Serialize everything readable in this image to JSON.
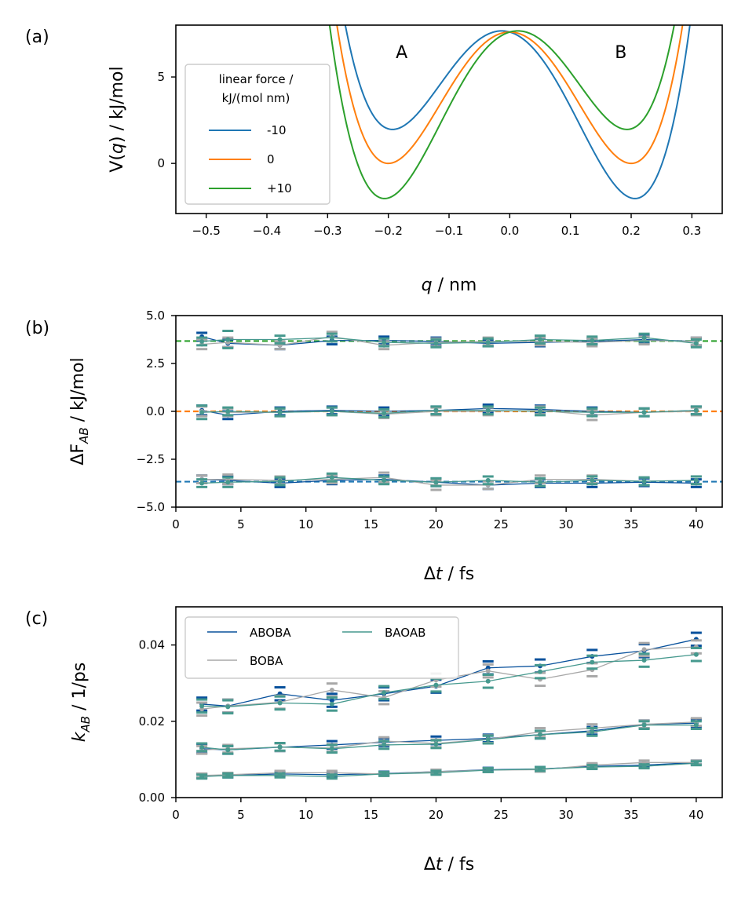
{
  "chart_data": [
    {
      "type": "line",
      "panel_label": "(a)",
      "xlabel_var": "q",
      "xlabel_unit": " / nm",
      "ylabel_pre": "V(",
      "ylabel_var": "q",
      "ylabel_post": ") / kJ/mol",
      "xlim": [
        -0.55,
        0.35
      ],
      "ylim": [
        -2.9,
        8.0
      ],
      "xticks": [
        -0.5,
        -0.4,
        -0.3,
        -0.2,
        -0.1,
        0.0,
        0.1,
        0.2,
        0.3
      ],
      "xtick_labels": [
        "−0.5",
        "−0.4",
        "−0.3",
        "−0.2",
        "−0.1",
        "0.0",
        "0.1",
        "0.2",
        "0.3"
      ],
      "yticks": [
        0,
        5
      ],
      "ytick_labels": [
        "0",
        "5"
      ],
      "annotations": [
        {
          "text": "A",
          "x": -0.178,
          "y": 6.45
        },
        {
          "text": "B",
          "x": 0.183,
          "y": 6.45
        }
      ],
      "legend_title_line1": "linear force /",
      "legend_title_line2": "kJ/(mol nm)",
      "potential": {
        "barrier": 7.6,
        "q0": 0.2
      },
      "series": [
        {
          "name": "-10",
          "force": -10,
          "color": "#1f77b4"
        },
        {
          "name": "0",
          "force": 0,
          "color": "#ff7f0e"
        },
        {
          "name": "+10",
          "force": 10,
          "color": "#2ca02c"
        }
      ]
    },
    {
      "type": "line",
      "panel_label": "(b)",
      "xlabel_pre": "Δ",
      "xlabel_var": "t",
      "xlabel_unit": " / fs",
      "ylabel_pre": "ΔF",
      "ylabel_sub": "AB",
      "ylabel_post": " / kJ/mol",
      "xlim": [
        0,
        42
      ],
      "ylim": [
        -5.0,
        5.0
      ],
      "xticks": [
        0,
        5,
        10,
        15,
        20,
        25,
        30,
        35,
        40
      ],
      "xtick_labels": [
        "0",
        "5",
        "10",
        "15",
        "20",
        "25",
        "30",
        "35",
        "40"
      ],
      "yticks": [
        -5.0,
        -2.5,
        0.0,
        2.5,
        5.0
      ],
      "ytick_labels": [
        "−5.0",
        "−2.5",
        "0.0",
        "2.5",
        "5.0"
      ],
      "x": [
        2,
        4,
        8,
        12,
        16,
        20,
        24,
        28,
        32,
        36,
        40
      ],
      "reference_lines": [
        {
          "y": 3.67,
          "color": "#2ca02c"
        },
        {
          "y": 0.0,
          "color": "#ff7f0e"
        },
        {
          "y": -3.67,
          "color": "#1f77b4"
        }
      ],
      "series": [
        {
          "name": "ABOBA",
          "color": "#08519c",
          "groups": [
            {
              "values": [
                3.9,
                3.55,
                3.45,
                3.7,
                3.7,
                3.65,
                3.55,
                3.6,
                3.65,
                3.75,
                3.65
              ],
              "err": [
                0.2,
                0.2,
                0.2,
                0.2,
                0.2,
                0.2,
                0.15,
                0.2,
                0.15,
                0.2,
                0.2
              ]
            },
            {
              "values": [
                0.05,
                -0.2,
                0.0,
                0.05,
                0.0,
                0.05,
                0.15,
                0.1,
                0.0,
                -0.05,
                0.05
              ],
              "err": [
                0.25,
                0.2,
                0.2,
                0.2,
                0.2,
                0.2,
                0.2,
                0.2,
                0.2,
                0.2,
                0.2
              ]
            },
            {
              "values": [
                -3.55,
                -3.6,
                -3.75,
                -3.6,
                -3.55,
                -3.7,
                -3.85,
                -3.75,
                -3.75,
                -3.7,
                -3.75
              ],
              "err": [
                0.2,
                0.2,
                0.2,
                0.2,
                0.2,
                0.2,
                0.2,
                0.2,
                0.2,
                0.2,
                0.2
              ]
            }
          ]
        },
        {
          "name": "BOBA",
          "color": "#a8a8a8",
          "groups": [
            {
              "values": [
                3.5,
                3.6,
                3.45,
                3.9,
                3.45,
                3.6,
                3.65,
                3.65,
                3.6,
                3.7,
                3.65
              ],
              "err": [
                0.25,
                0.25,
                0.2,
                0.25,
                0.2,
                0.2,
                0.2,
                0.2,
                0.2,
                0.2,
                0.2
              ]
            },
            {
              "values": [
                0.0,
                -0.05,
                -0.05,
                0.0,
                -0.15,
                0.0,
                0.0,
                0.05,
                -0.2,
                -0.05,
                0.0
              ],
              "err": [
                0.25,
                0.2,
                0.2,
                0.2,
                0.2,
                0.2,
                0.2,
                0.2,
                0.25,
                0.2,
                0.2
              ]
            },
            {
              "values": [
                -3.55,
                -3.55,
                -3.6,
                -3.55,
                -3.45,
                -3.85,
                -3.85,
                -3.55,
                -3.55,
                -3.65,
                -3.6
              ],
              "err": [
                0.2,
                0.25,
                0.2,
                0.2,
                0.25,
                0.25,
                0.2,
                0.2,
                0.2,
                0.2,
                0.2
              ]
            }
          ]
        },
        {
          "name": "BAOAB",
          "color": "#46998e",
          "groups": [
            {
              "values": [
                3.65,
                3.75,
                3.75,
                3.85,
                3.6,
                3.55,
                3.6,
                3.75,
                3.7,
                3.85,
                3.55
              ],
              "err": [
                0.2,
                0.45,
                0.2,
                0.2,
                0.2,
                0.2,
                0.2,
                0.2,
                0.2,
                0.2,
                0.2
              ]
            },
            {
              "values": [
                -0.05,
                0.0,
                -0.05,
                0.0,
                -0.1,
                0.05,
                0.05,
                0.0,
                -0.05,
                -0.05,
                0.05
              ],
              "err": [
                0.35,
                0.2,
                0.2,
                0.2,
                0.2,
                0.2,
                0.2,
                0.2,
                0.2,
                0.2,
                0.2
              ]
            },
            {
              "values": [
                -3.75,
                -3.7,
                -3.65,
                -3.45,
                -3.6,
                -3.7,
                -3.6,
                -3.7,
                -3.6,
                -3.65,
                -3.6
              ],
              "err": [
                0.2,
                0.25,
                0.2,
                0.2,
                0.2,
                0.2,
                0.2,
                0.2,
                0.2,
                0.2,
                0.2
              ]
            }
          ]
        }
      ]
    },
    {
      "type": "line",
      "panel_label": "(c)",
      "xlabel_pre": "Δ",
      "xlabel_var": "t",
      "xlabel_unit": " / fs",
      "ylabel_var": "k",
      "ylabel_sub": "AB",
      "ylabel_post": " / 1/ps",
      "xlim": [
        0,
        42
      ],
      "ylim": [
        0.0,
        0.05
      ],
      "xticks": [
        0,
        5,
        10,
        15,
        20,
        25,
        30,
        35,
        40
      ],
      "xtick_labels": [
        "0",
        "5",
        "10",
        "15",
        "20",
        "25",
        "30",
        "35",
        "40"
      ],
      "yticks": [
        0.0,
        0.02,
        0.04
      ],
      "ytick_labels": [
        "0.00",
        "0.02",
        "0.04"
      ],
      "x": [
        2,
        4,
        8,
        12,
        16,
        20,
        24,
        28,
        32,
        36,
        40
      ],
      "legend": [
        "ABOBA",
        "BOBA",
        "BAOAB"
      ],
      "series": [
        {
          "name": "ABOBA",
          "color": "#08519c",
          "groups": [
            {
              "values": [
                0.0245,
                0.024,
                0.0272,
                0.0255,
                0.0272,
                0.0292,
                0.034,
                0.0345,
                0.037,
                0.0385,
                0.0415
              ],
              "err": [
                0.0017,
                0.0017,
                0.0017,
                0.0017,
                0.0017,
                0.0017,
                0.0017,
                0.0017,
                0.0017,
                0.0017,
                0.0017
              ]
            },
            {
              "values": [
                0.0128,
                0.0125,
                0.0132,
                0.0138,
                0.0145,
                0.015,
                0.0155,
                0.0165,
                0.0175,
                0.0192,
                0.0195
              ],
              "err": [
                0.0012,
                0.001,
                0.001,
                0.001,
                0.001,
                0.001,
                0.001,
                0.001,
                0.001,
                0.001,
                0.001
              ]
            },
            {
              "values": [
                0.0057,
                0.0058,
                0.0062,
                0.006,
                0.0063,
                0.0068,
                0.0073,
                0.0075,
                0.0082,
                0.0085,
                0.0092
              ],
              "err": [
                0.0005,
                0.0005,
                0.0005,
                0.0005,
                0.0005,
                0.0005,
                0.0005,
                0.0005,
                0.0005,
                0.0005,
                0.0005
              ]
            }
          ]
        },
        {
          "name": "BOBA",
          "color": "#a8a8a8",
          "groups": [
            {
              "values": [
                0.0232,
                0.024,
                0.025,
                0.0282,
                0.0262,
                0.0308,
                0.0332,
                0.031,
                0.0335,
                0.0388,
                0.0395
              ],
              "err": [
                0.0017,
                0.0017,
                0.0017,
                0.0017,
                0.0017,
                0.0017,
                0.0017,
                0.0017,
                0.0017,
                0.0017,
                0.0017
              ]
            },
            {
              "values": [
                0.0125,
                0.0128,
                0.0132,
                0.013,
                0.0148,
                0.0142,
                0.0153,
                0.0172,
                0.0182,
                0.0192,
                0.0198
              ],
              "err": [
                0.001,
                0.001,
                0.001,
                0.001,
                0.001,
                0.001,
                0.001,
                0.001,
                0.001,
                0.001,
                0.001
              ]
            },
            {
              "values": [
                0.0058,
                0.006,
                0.0065,
                0.0065,
                0.0062,
                0.0068,
                0.0072,
                0.0073,
                0.0085,
                0.0092,
                0.0092
              ],
              "err": [
                0.0005,
                0.0005,
                0.0005,
                0.0005,
                0.0005,
                0.0005,
                0.0005,
                0.0005,
                0.0005,
                0.0005,
                0.0005
              ]
            }
          ]
        },
        {
          "name": "BAOAB",
          "color": "#46998e",
          "groups": [
            {
              "values": [
                0.024,
                0.0238,
                0.0248,
                0.0245,
                0.0275,
                0.0295,
                0.0305,
                0.033,
                0.0355,
                0.036,
                0.0375
              ],
              "err": [
                0.0017,
                0.0017,
                0.0017,
                0.0017,
                0.0017,
                0.0017,
                0.0017,
                0.0017,
                0.0017,
                0.0017,
                0.0017
              ]
            },
            {
              "values": [
                0.0132,
                0.0125,
                0.0133,
                0.0128,
                0.0138,
                0.014,
                0.0152,
                0.0165,
                0.0172,
                0.019,
                0.019
              ],
              "err": [
                0.001,
                0.001,
                0.001,
                0.001,
                0.001,
                0.001,
                0.001,
                0.001,
                0.001,
                0.001,
                0.001
              ]
            },
            {
              "values": [
                0.0055,
                0.0058,
                0.0058,
                0.0055,
                0.0062,
                0.0065,
                0.0072,
                0.0075,
                0.008,
                0.0082,
                0.009
              ],
              "err": [
                0.0005,
                0.0005,
                0.0005,
                0.0005,
                0.0005,
                0.0005,
                0.0005,
                0.0005,
                0.0005,
                0.0005,
                0.0005
              ]
            }
          ]
        }
      ]
    }
  ]
}
